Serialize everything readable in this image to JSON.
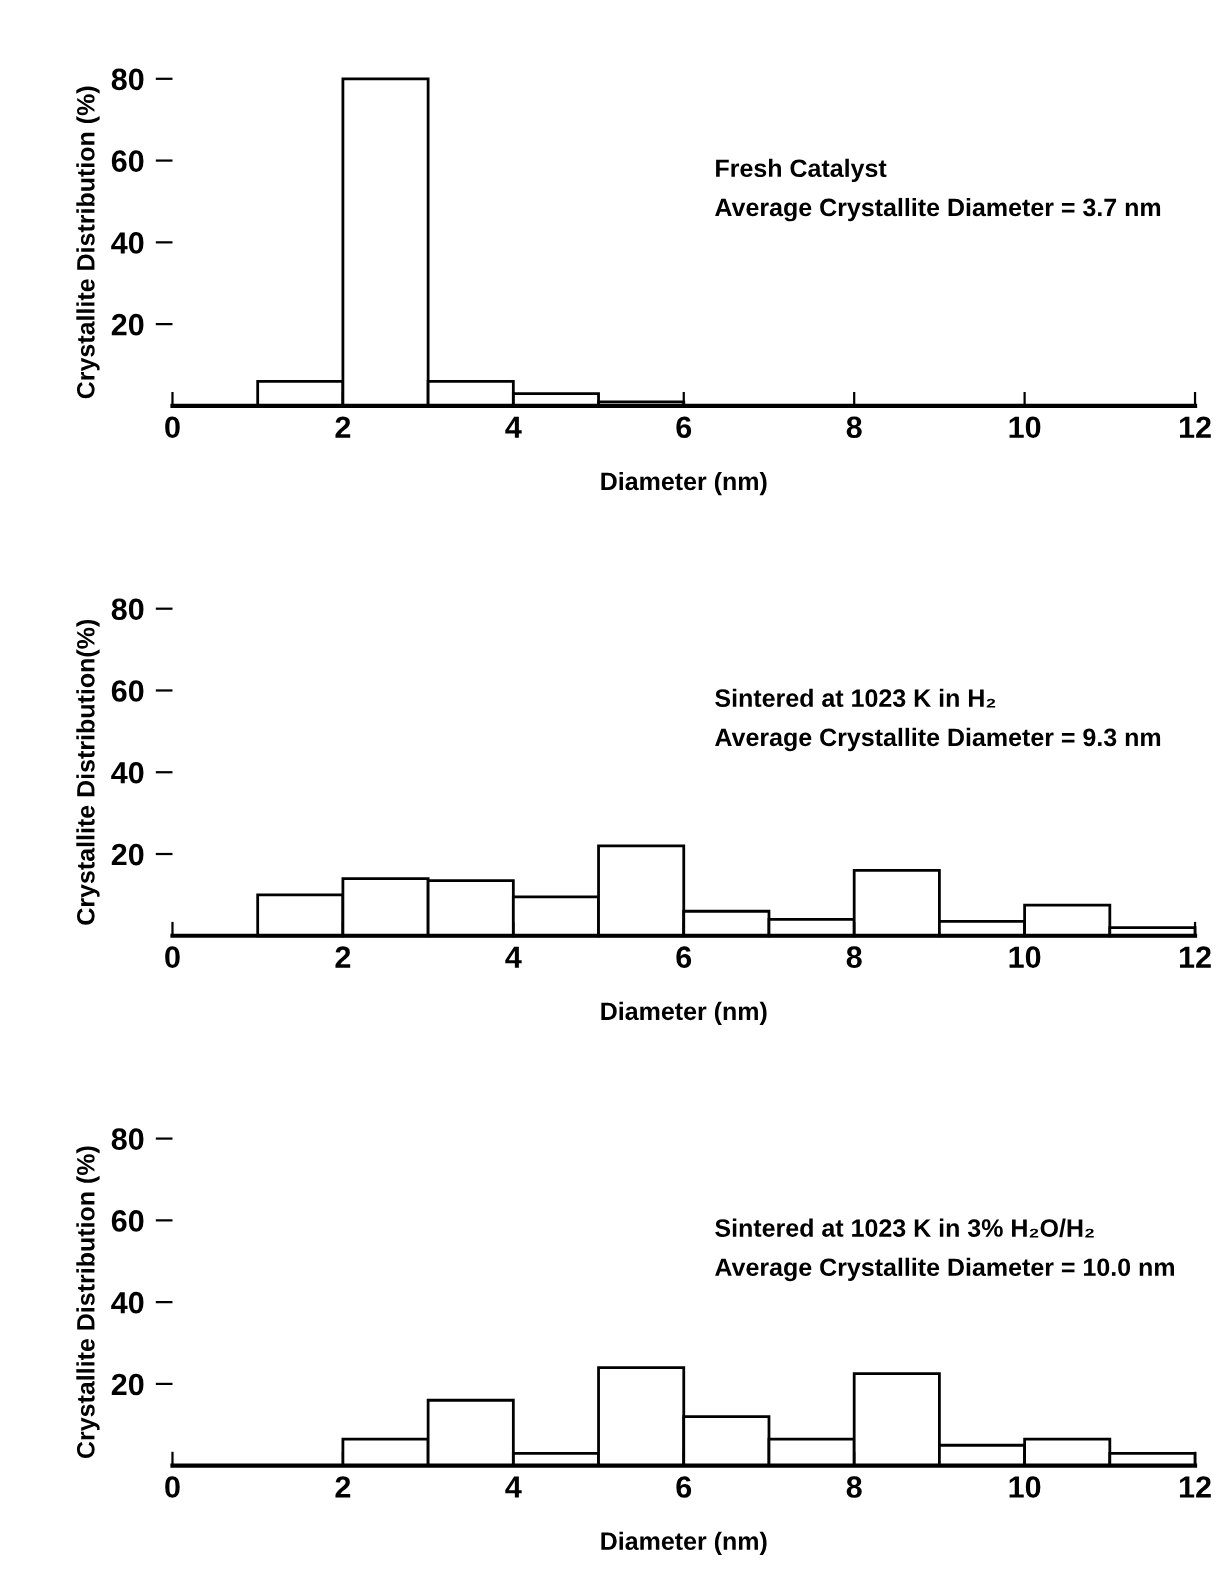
{
  "chart_data": [
    {
      "type": "histogram",
      "xlabel": "Diameter (nm)",
      "ylabel": "Crystallite Distribution (%)",
      "annotations": [
        "Fresh Catalyst",
        "Average Crystallite Diameter = 3.7 nm"
      ],
      "bins": [
        0,
        1,
        2,
        3,
        4,
        5,
        6,
        7,
        8,
        9,
        10,
        11,
        12
      ],
      "values": [
        0,
        6,
        80,
        6,
        3,
        1,
        0,
        0,
        0,
        0,
        0,
        0
      ],
      "color": "#ffffff",
      "xlim": [
        0,
        12
      ],
      "ylim": [
        0,
        80
      ],
      "xticks": [
        0,
        2,
        4,
        6,
        8,
        10,
        12
      ],
      "yticks": [
        20,
        40,
        60,
        80
      ],
      "grid": false
    },
    {
      "type": "histogram",
      "xlabel": "Diameter (nm)",
      "ylabel": "Crystallite Distribution(%)",
      "annotations": [
        "Sintered at 1023 K in H₂",
        "Average Crystallite Diameter = 9.3 nm"
      ],
      "bins": [
        0,
        1,
        2,
        3,
        4,
        5,
        6,
        7,
        8,
        9,
        10,
        11,
        12
      ],
      "values": [
        0,
        10,
        14,
        13.5,
        9.5,
        22,
        6,
        4,
        16,
        3.5,
        7.5,
        2
      ],
      "color": "#ffffff",
      "xlim": [
        0,
        12
      ],
      "ylim": [
        0,
        80
      ],
      "xticks": [
        0,
        2,
        4,
        6,
        8,
        10,
        12
      ],
      "yticks": [
        20,
        40,
        60,
        80
      ],
      "grid": false
    },
    {
      "type": "histogram",
      "xlabel": "Diameter (nm)",
      "ylabel": "Crystallite Distribution (%)",
      "annotations": [
        "Sintered at 1023 K in 3% H₂O/H₂",
        "Average Crystallite Diameter = 10.0 nm"
      ],
      "bins": [
        0,
        1,
        2,
        3,
        4,
        5,
        6,
        7,
        8,
        9,
        10,
        11,
        12
      ],
      "values": [
        0,
        0,
        6.5,
        16,
        3,
        24,
        12,
        6.5,
        22.5,
        5,
        6.5,
        3
      ],
      "color": "#ffffff",
      "xlim": [
        0,
        12
      ],
      "ylim": [
        0,
        80
      ],
      "xticks": [
        0,
        2,
        4,
        6,
        8,
        10,
        12
      ],
      "yticks": [
        20,
        40,
        60,
        80
      ],
      "grid": false
    }
  ]
}
